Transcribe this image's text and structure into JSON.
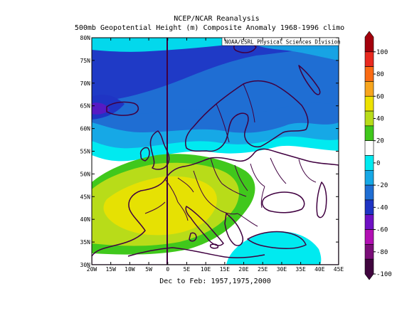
{
  "titles": {
    "line1": "NCEP/NCAR Reanalysis",
    "line2": "500mb Geopotential Height (m) Composite Anomaly 1968-1996 climo",
    "credit": "NOAA/ESRL Physical Sciences Division",
    "footer": "Dec to Feb: 1957,1975,2000"
  },
  "map": {
    "projection": "cylindrical-equidistant",
    "region": "Europe / North Atlantic",
    "lon_labels": [
      "20W",
      "15W",
      "10W",
      "5W",
      "0",
      "5E",
      "10E",
      "15E",
      "20E",
      "25E",
      "30E",
      "35E",
      "40E",
      "45E"
    ],
    "lat_labels": [
      "30N",
      "35N",
      "40N",
      "45N",
      "50N",
      "55N",
      "60N",
      "65N",
      "70N",
      "75N",
      "80N"
    ],
    "lon_range": [
      -20,
      45
    ],
    "lat_range": [
      30,
      80
    ],
    "prime_meridian_line": true
  },
  "colorbar": {
    "labels": [
      "100",
      "80",
      "60",
      "40",
      "20",
      "0",
      "-20",
      "-40",
      "-60",
      "-80",
      "-100"
    ],
    "colors": [
      "#a3000c",
      "#e8291f",
      "#fa6b13",
      "#f7a51e",
      "#ede200",
      "#b8dc19",
      "#40c81c",
      "#ffffff",
      "#00eaf0",
      "#16a8e6",
      "#1f6ed3",
      "#1f34c4",
      "#6f10c4",
      "#b20fb3",
      "#7a0d78",
      "#40053e"
    ]
  }
}
